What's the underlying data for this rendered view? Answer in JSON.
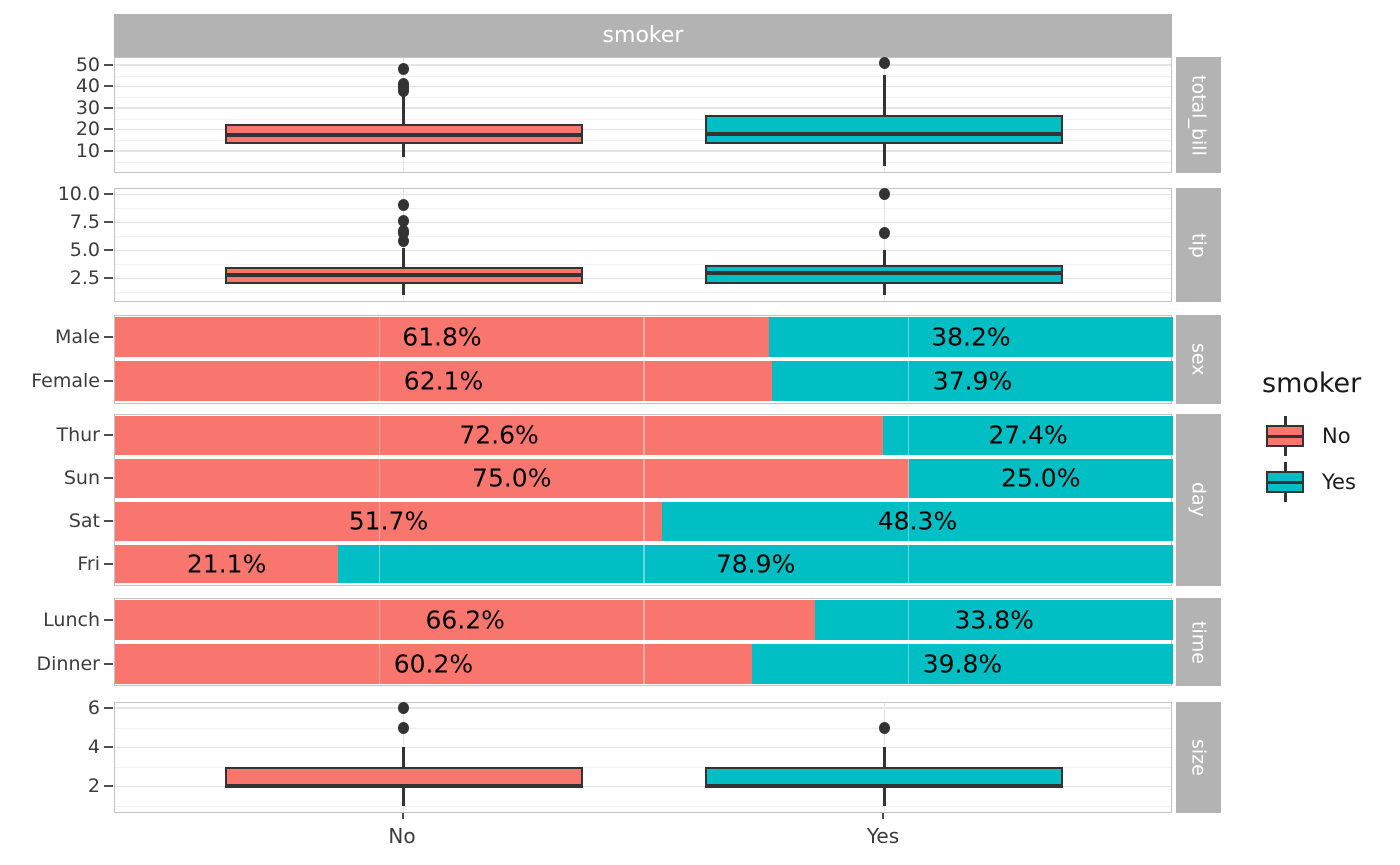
{
  "title_strip": "smoker",
  "x_axis": {
    "categories": [
      "No",
      "Yes"
    ]
  },
  "legend": {
    "title": "smoker",
    "items": [
      {
        "label": "No",
        "color": "#F8766D"
      },
      {
        "label": "Yes",
        "color": "#00BFC4"
      }
    ]
  },
  "colors": {
    "no": "#F8766D",
    "yes": "#00BFC4",
    "strip_bg": "#b3b3b3",
    "strip_text": "#ffffff",
    "outline": "#333333",
    "grid_major": "#e4e4e4",
    "grid_minor": "#f1f1f1",
    "axis_text": "#3c3c3c",
    "panel_bg": "#ffffff"
  },
  "chart_data": [
    {
      "type": "boxplot",
      "facet": "total_bill",
      "ylim": [
        0.7,
        53.2
      ],
      "yticks": [
        {
          "v": 10,
          "label": "10"
        },
        {
          "v": 20,
          "label": "20"
        },
        {
          "v": 30,
          "label": "30"
        },
        {
          "v": 40,
          "label": "40"
        },
        {
          "v": 50,
          "label": "50"
        }
      ],
      "yminor": [
        5,
        15,
        25,
        35,
        45
      ],
      "groups": [
        {
          "x": "No",
          "color_key": "no",
          "low": 7.25,
          "q1": 13.33,
          "median": 17.59,
          "q3": 22.76,
          "high": 35.83,
          "outliers": [
            38.1,
            39.4,
            40.2,
            41.2,
            48.3
          ]
        },
        {
          "x": "Yes",
          "color_key": "yes",
          "low": 3.07,
          "q1": 13.42,
          "median": 17.92,
          "q3": 26.86,
          "high": 45.35,
          "outliers": [
            50.8
          ]
        }
      ]
    },
    {
      "type": "boxplot",
      "facet": "tip",
      "ylim": [
        0.55,
        10.45
      ],
      "yticks": [
        {
          "v": 2.5,
          "label": "2.5"
        },
        {
          "v": 5.0,
          "label": "5.0"
        },
        {
          "v": 7.5,
          "label": "7.5"
        },
        {
          "v": 10.0,
          "label": "10.0"
        }
      ],
      "yminor": [
        1.25,
        3.75,
        6.25,
        8.75
      ],
      "groups": [
        {
          "x": "No",
          "color_key": "no",
          "low": 1.0,
          "q1": 2.0,
          "median": 2.74,
          "q3": 3.5,
          "high": 5.2,
          "outliers": [
            5.85,
            6.5,
            6.7,
            7.58,
            9.0
          ]
        },
        {
          "x": "Yes",
          "color_key": "yes",
          "low": 1.0,
          "q1": 2.0,
          "median": 3.0,
          "q3": 3.68,
          "high": 5.0,
          "outliers": [
            6.5,
            10.0
          ]
        }
      ]
    },
    {
      "type": "stacked_bar",
      "facet": "sex",
      "rows": [
        {
          "label": "Male",
          "no": 61.8,
          "yes": 38.2
        },
        {
          "label": "Female",
          "no": 62.1,
          "yes": 37.9
        }
      ]
    },
    {
      "type": "stacked_bar",
      "facet": "day",
      "rows": [
        {
          "label": "Thur",
          "no": 72.6,
          "yes": 27.4
        },
        {
          "label": "Sun",
          "no": 75.0,
          "yes": 25.0
        },
        {
          "label": "Sat",
          "no": 51.7,
          "yes": 48.3
        },
        {
          "label": "Fri",
          "no": 21.1,
          "yes": 78.9
        }
      ]
    },
    {
      "type": "stacked_bar",
      "facet": "time",
      "rows": [
        {
          "label": "Lunch",
          "no": 66.2,
          "yes": 33.8
        },
        {
          "label": "Dinner",
          "no": 60.2,
          "yes": 39.8
        }
      ]
    },
    {
      "type": "boxplot",
      "facet": "size",
      "ylim": [
        0.75,
        6.25
      ],
      "yticks": [
        {
          "v": 2,
          "label": "2"
        },
        {
          "v": 4,
          "label": "4"
        },
        {
          "v": 6,
          "label": "6"
        }
      ],
      "yminor": [
        1,
        3,
        5
      ],
      "groups": [
        {
          "x": "No",
          "color_key": "no",
          "low": 1,
          "q1": 2,
          "median": 2,
          "q3": 3,
          "high": 4,
          "outliers": [
            5,
            6
          ]
        },
        {
          "x": "Yes",
          "color_key": "yes",
          "low": 1,
          "q1": 2,
          "median": 2,
          "q3": 3,
          "high": 4,
          "outliers": [
            5
          ]
        }
      ]
    }
  ]
}
